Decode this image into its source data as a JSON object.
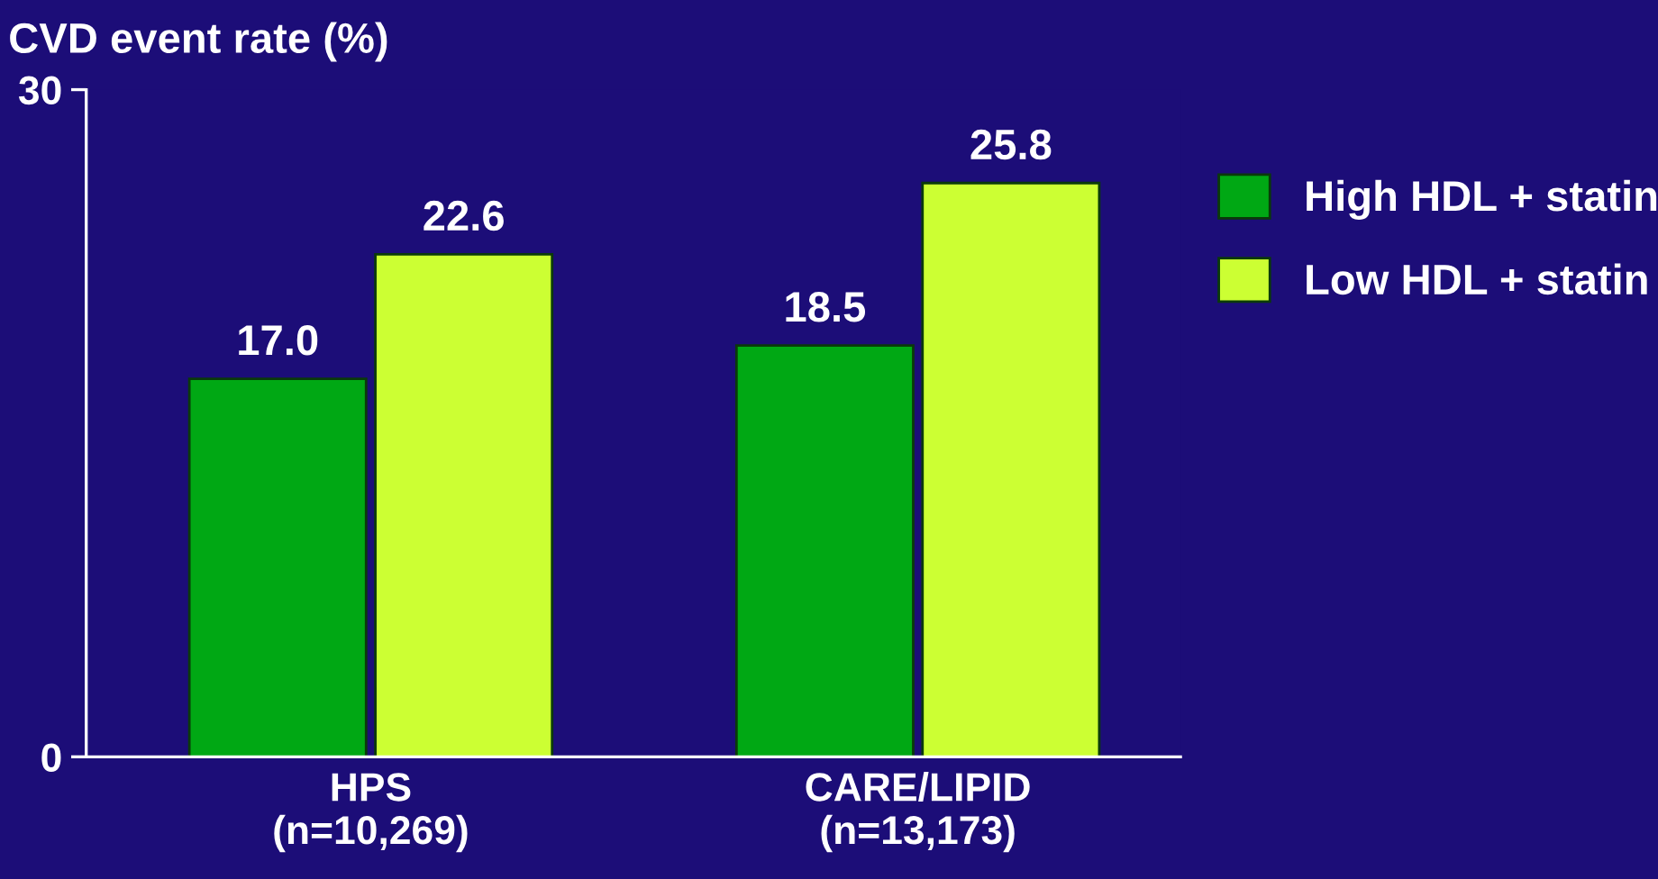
{
  "chart_data": {
    "type": "bar",
    "ylabel": "CVD event rate (%)",
    "categories": [
      "HPS\n(n=10,269)",
      "CARE/LIPID\n(n=13,173)"
    ],
    "series": [
      {
        "name": "High HDL + statin",
        "color": "#00a814",
        "values": [
          17.0,
          18.5
        ],
        "value_labels": [
          "17.0",
          "18.5"
        ]
      },
      {
        "name": "Low HDL + statin",
        "color": "#ccff33",
        "values": [
          22.6,
          25.8
        ],
        "value_labels": [
          "22.6",
          "25.8"
        ]
      }
    ],
    "ylim": [
      0,
      30
    ],
    "yticks": [
      0,
      30
    ],
    "grid": false,
    "legend": "top right"
  }
}
